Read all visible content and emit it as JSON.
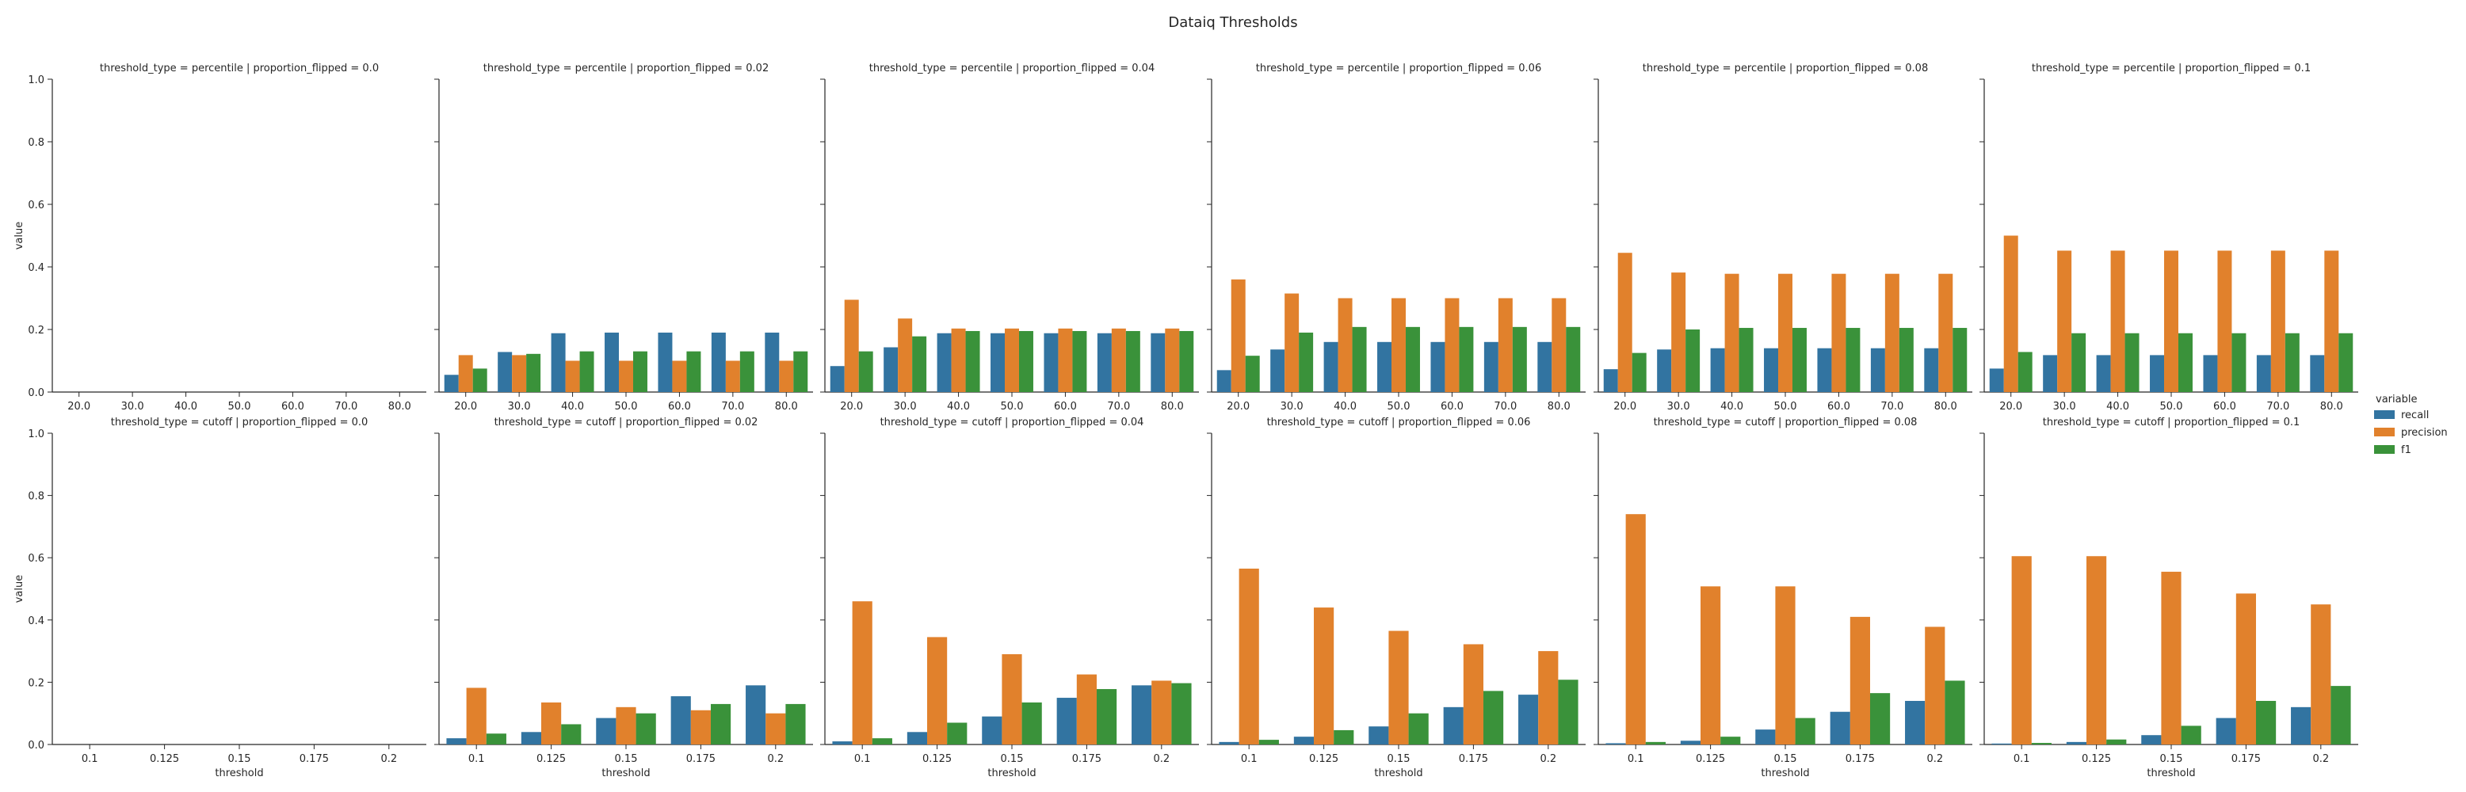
{
  "title": "Dataiq Thresholds",
  "legend": {
    "title": "variable",
    "placement": "right",
    "entries": [
      {
        "name": "recall",
        "color": "#3274a1"
      },
      {
        "name": "precision",
        "color": "#e1812c"
      },
      {
        "name": "f1",
        "color": "#3a923a"
      }
    ]
  },
  "chart_data": [
    {
      "type": "bar",
      "title": "threshold_type = percentile | proportion_flipped = 0.0",
      "xlabel": "",
      "ylabel": "value",
      "ylim": [
        0,
        1
      ],
      "categories": [
        "20.0",
        "30.0",
        "40.0",
        "50.0",
        "60.0",
        "70.0",
        "80.0"
      ],
      "series": [
        {
          "name": "recall",
          "values": [
            0,
            0,
            0,
            0,
            0,
            0,
            0
          ]
        },
        {
          "name": "precision",
          "values": [
            0,
            0,
            0,
            0,
            0,
            0,
            0
          ]
        },
        {
          "name": "f1",
          "values": [
            0,
            0,
            0,
            0,
            0,
            0,
            0
          ]
        }
      ]
    },
    {
      "type": "bar",
      "title": "threshold_type = percentile | proportion_flipped = 0.02",
      "xlabel": "",
      "ylabel": "",
      "ylim": [
        0,
        1
      ],
      "categories": [
        "20.0",
        "30.0",
        "40.0",
        "50.0",
        "60.0",
        "70.0",
        "80.0"
      ],
      "series": [
        {
          "name": "recall",
          "values": [
            0.055,
            0.128,
            0.188,
            0.19,
            0.19,
            0.19,
            0.19
          ]
        },
        {
          "name": "precision",
          "values": [
            0.118,
            0.118,
            0.1,
            0.1,
            0.1,
            0.1,
            0.1
          ]
        },
        {
          "name": "f1",
          "values": [
            0.075,
            0.122,
            0.13,
            0.13,
            0.13,
            0.13,
            0.13
          ]
        }
      ]
    },
    {
      "type": "bar",
      "title": "threshold_type = percentile | proportion_flipped = 0.04",
      "xlabel": "",
      "ylabel": "",
      "ylim": [
        0,
        1
      ],
      "categories": [
        "20.0",
        "30.0",
        "40.0",
        "50.0",
        "60.0",
        "70.0",
        "80.0"
      ],
      "series": [
        {
          "name": "recall",
          "values": [
            0.083,
            0.143,
            0.188,
            0.188,
            0.188,
            0.188,
            0.188
          ]
        },
        {
          "name": "precision",
          "values": [
            0.295,
            0.235,
            0.203,
            0.203,
            0.203,
            0.203,
            0.203
          ]
        },
        {
          "name": "f1",
          "values": [
            0.13,
            0.178,
            0.195,
            0.195,
            0.195,
            0.195,
            0.195
          ]
        }
      ]
    },
    {
      "type": "bar",
      "title": "threshold_type = percentile | proportion_flipped = 0.06",
      "xlabel": "",
      "ylabel": "",
      "ylim": [
        0,
        1
      ],
      "categories": [
        "20.0",
        "30.0",
        "40.0",
        "50.0",
        "60.0",
        "70.0",
        "80.0"
      ],
      "series": [
        {
          "name": "recall",
          "values": [
            0.07,
            0.136,
            0.16,
            0.16,
            0.16,
            0.16,
            0.16
          ]
        },
        {
          "name": "precision",
          "values": [
            0.36,
            0.315,
            0.3,
            0.3,
            0.3,
            0.3,
            0.3
          ]
        },
        {
          "name": "f1",
          "values": [
            0.116,
            0.19,
            0.208,
            0.208,
            0.208,
            0.208,
            0.208
          ]
        }
      ]
    },
    {
      "type": "bar",
      "title": "threshold_type = percentile | proportion_flipped = 0.08",
      "xlabel": "",
      "ylabel": "",
      "ylim": [
        0,
        1
      ],
      "categories": [
        "20.0",
        "30.0",
        "40.0",
        "50.0",
        "60.0",
        "70.0",
        "80.0"
      ],
      "series": [
        {
          "name": "recall",
          "values": [
            0.073,
            0.136,
            0.14,
            0.14,
            0.14,
            0.14,
            0.14
          ]
        },
        {
          "name": "precision",
          "values": [
            0.445,
            0.382,
            0.378,
            0.378,
            0.378,
            0.378,
            0.378
          ]
        },
        {
          "name": "f1",
          "values": [
            0.125,
            0.2,
            0.205,
            0.205,
            0.205,
            0.205,
            0.205
          ]
        }
      ]
    },
    {
      "type": "bar",
      "title": "threshold_type = percentile | proportion_flipped = 0.1",
      "xlabel": "",
      "ylabel": "",
      "ylim": [
        0,
        1
      ],
      "categories": [
        "20.0",
        "30.0",
        "40.0",
        "50.0",
        "60.0",
        "70.0",
        "80.0"
      ],
      "series": [
        {
          "name": "recall",
          "values": [
            0.075,
            0.118,
            0.118,
            0.118,
            0.118,
            0.118,
            0.118
          ]
        },
        {
          "name": "precision",
          "values": [
            0.5,
            0.452,
            0.452,
            0.452,
            0.452,
            0.452,
            0.452
          ]
        },
        {
          "name": "f1",
          "values": [
            0.128,
            0.188,
            0.188,
            0.188,
            0.188,
            0.188,
            0.188
          ]
        }
      ]
    },
    {
      "type": "bar",
      "title": "threshold_type = cutoff | proportion_flipped = 0.0",
      "xlabel": "threshold",
      "ylabel": "value",
      "ylim": [
        0,
        1
      ],
      "categories": [
        "0.1",
        "0.125",
        "0.15",
        "0.175",
        "0.2"
      ],
      "series": [
        {
          "name": "recall",
          "values": [
            0,
            0,
            0,
            0,
            0
          ]
        },
        {
          "name": "precision",
          "values": [
            0,
            0,
            0,
            0,
            0
          ]
        },
        {
          "name": "f1",
          "values": [
            0,
            0,
            0,
            0,
            0
          ]
        }
      ]
    },
    {
      "type": "bar",
      "title": "threshold_type = cutoff | proportion_flipped = 0.02",
      "xlabel": "threshold",
      "ylabel": "",
      "ylim": [
        0,
        1
      ],
      "categories": [
        "0.1",
        "0.125",
        "0.15",
        "0.175",
        "0.2"
      ],
      "series": [
        {
          "name": "recall",
          "values": [
            0.02,
            0.04,
            0.085,
            0.155,
            0.19
          ]
        },
        {
          "name": "precision",
          "values": [
            0.182,
            0.135,
            0.12,
            0.11,
            0.1
          ]
        },
        {
          "name": "f1",
          "values": [
            0.035,
            0.065,
            0.1,
            0.13,
            0.13
          ]
        }
      ]
    },
    {
      "type": "bar",
      "title": "threshold_type = cutoff | proportion_flipped = 0.04",
      "xlabel": "threshold",
      "ylabel": "",
      "ylim": [
        0,
        1
      ],
      "categories": [
        "0.1",
        "0.125",
        "0.15",
        "0.175",
        "0.2"
      ],
      "series": [
        {
          "name": "recall",
          "values": [
            0.01,
            0.04,
            0.09,
            0.15,
            0.19
          ]
        },
        {
          "name": "precision",
          "values": [
            0.46,
            0.345,
            0.29,
            0.225,
            0.205
          ]
        },
        {
          "name": "f1",
          "values": [
            0.02,
            0.07,
            0.135,
            0.178,
            0.197
          ]
        }
      ]
    },
    {
      "type": "bar",
      "title": "threshold_type = cutoff | proportion_flipped = 0.06",
      "xlabel": "threshold",
      "ylabel": "",
      "ylim": [
        0,
        1
      ],
      "categories": [
        "0.1",
        "0.125",
        "0.15",
        "0.175",
        "0.2"
      ],
      "series": [
        {
          "name": "recall",
          "values": [
            0.008,
            0.025,
            0.058,
            0.12,
            0.16
          ]
        },
        {
          "name": "precision",
          "values": [
            0.565,
            0.44,
            0.365,
            0.322,
            0.3
          ]
        },
        {
          "name": "f1",
          "values": [
            0.015,
            0.046,
            0.1,
            0.172,
            0.208
          ]
        }
      ]
    },
    {
      "type": "bar",
      "title": "threshold_type = cutoff | proportion_flipped = 0.08",
      "xlabel": "threshold",
      "ylabel": "",
      "ylim": [
        0,
        1
      ],
      "categories": [
        "0.1",
        "0.125",
        "0.15",
        "0.175",
        "0.2"
      ],
      "series": [
        {
          "name": "recall",
          "values": [
            0.004,
            0.012,
            0.048,
            0.105,
            0.14
          ]
        },
        {
          "name": "precision",
          "values": [
            0.74,
            0.508,
            0.508,
            0.41,
            0.378
          ]
        },
        {
          "name": "f1",
          "values": [
            0.008,
            0.025,
            0.085,
            0.165,
            0.205
          ]
        }
      ]
    },
    {
      "type": "bar",
      "title": "threshold_type = cutoff | proportion_flipped = 0.1",
      "xlabel": "threshold",
      "ylabel": "",
      "ylim": [
        0,
        1
      ],
      "categories": [
        "0.1",
        "0.125",
        "0.15",
        "0.175",
        "0.2"
      ],
      "series": [
        {
          "name": "recall",
          "values": [
            0.003,
            0.008,
            0.03,
            0.085,
            0.12
          ]
        },
        {
          "name": "precision",
          "values": [
            0.605,
            0.605,
            0.555,
            0.485,
            0.45
          ]
        },
        {
          "name": "f1",
          "values": [
            0.005,
            0.016,
            0.06,
            0.14,
            0.188
          ]
        }
      ]
    }
  ]
}
